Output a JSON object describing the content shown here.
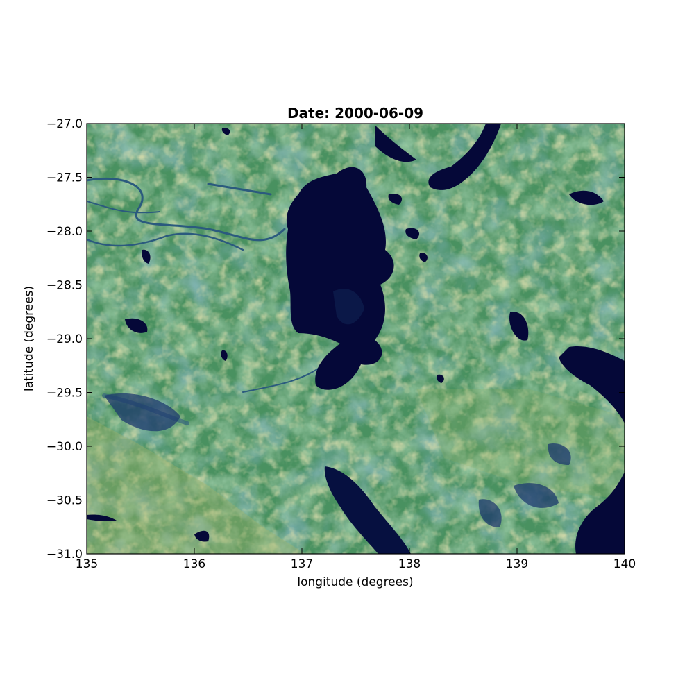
{
  "chart_data": {
    "type": "heatmap",
    "title": "Date: 2000-06-09",
    "xlabel": "longitude (degrees)",
    "ylabel": "latitude (degrees)",
    "xlim": [
      135,
      140
    ],
    "ylim": [
      -31.0,
      -27.0
    ],
    "xticks": [
      135,
      136,
      137,
      138,
      139,
      140
    ],
    "xtick_labels": [
      "135",
      "136",
      "137",
      "138",
      "139",
      "140"
    ],
    "yticks": [
      -27.0,
      -27.5,
      -28.0,
      -28.5,
      -29.0,
      -29.5,
      -30.0,
      -30.5,
      -31.0
    ],
    "ytick_labels": [
      "−27.0",
      "−27.5",
      "−28.0",
      "−28.5",
      "−29.0",
      "−29.5",
      "−30.0",
      "−30.5",
      "−31.0"
    ],
    "grid": false,
    "colormap": "gist_earth-like",
    "colors": {
      "water_dark": "#050838",
      "deep_blue": "#1d3e70",
      "blue_green": "#3e7a86",
      "green": "#4f9a5c",
      "yellow_green": "#a4b466"
    },
    "features": [
      {
        "kind": "water",
        "lon": [
          136.85,
          137.9
        ],
        "lat": [
          -27.4,
          -29.5
        ],
        "desc": "large dark basin centre"
      },
      {
        "kind": "water",
        "lon": [
          138.7,
          139.3
        ],
        "lat": [
          -27.0,
          -27.6
        ],
        "desc": "dark region top right"
      },
      {
        "kind": "water",
        "lon": [
          139.4,
          140.0
        ],
        "lat": [
          -29.1,
          -29.8
        ],
        "desc": "dark region right edge"
      },
      {
        "kind": "water",
        "lon": [
          139.5,
          140.0
        ],
        "lat": [
          -30.4,
          -31.0
        ],
        "desc": "dark region bottom right"
      },
      {
        "kind": "water",
        "lon": [
          137.2,
          137.9
        ],
        "lat": [
          -30.2,
          -31.0
        ],
        "desc": "dark gulf bottom centre"
      }
    ]
  }
}
